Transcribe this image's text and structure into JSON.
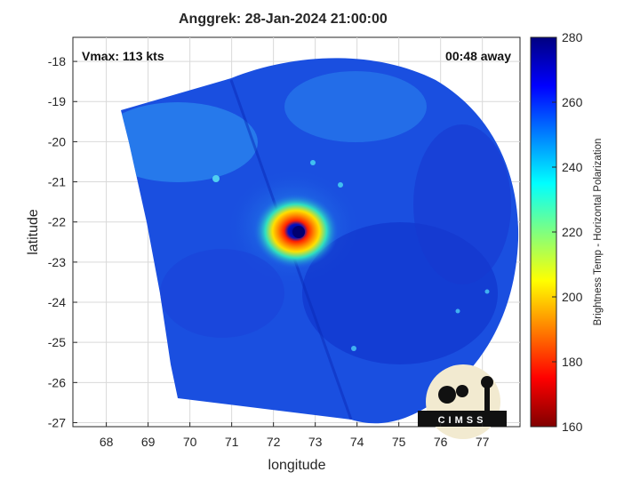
{
  "title": "Anggrek: 28-Jan-2024 21:00:00",
  "annotations": {
    "vmax": "Vmax: 113 kts",
    "time_away": "00:48 away"
  },
  "logo_text": "CIMSS",
  "chart_data": {
    "type": "heatmap",
    "title": "Anggrek: 28-Jan-2024 21:00:00",
    "xlabel": "longitude",
    "ylabel": "latitude",
    "xlim": [
      67.2,
      77.9
    ],
    "ylim": [
      -27.1,
      -17.4
    ],
    "xticks": [
      "68",
      "69",
      "70",
      "71",
      "72",
      "73",
      "74",
      "75",
      "76",
      "77"
    ],
    "yticks": [
      "-18",
      "-19",
      "-20",
      "-21",
      "-22",
      "-23",
      "-24",
      "-25",
      "-26",
      "-27"
    ],
    "grid": true,
    "storm_center": {
      "lon": 72.6,
      "lat": -22.15
    },
    "colorbar": {
      "label": "Brightness Temp - Horizontal Polarization",
      "range": [
        160,
        280
      ],
      "ticks": [
        "280",
        "260",
        "240",
        "220",
        "200",
        "180",
        "160"
      ],
      "colormap": "jet"
    }
  }
}
